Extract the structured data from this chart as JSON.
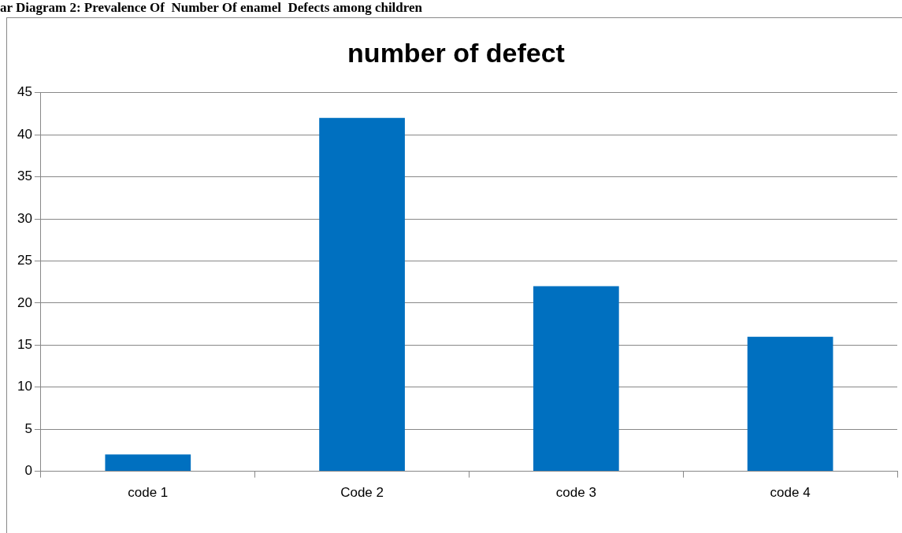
{
  "chart_data": {
    "type": "bar",
    "title": "number of defect",
    "annotations": [
      "ar Diagram 2: Prevalence Of  Number Of enamel  Defects among children"
    ],
    "categories": [
      "code 1",
      "Code 2",
      "code 3",
      "code 4"
    ],
    "values": [
      2,
      42,
      22,
      16
    ],
    "color": "#0070c0",
    "ylim": [
      0,
      45
    ],
    "yticks": [
      0,
      5,
      10,
      15,
      20,
      25,
      30,
      35,
      40,
      45
    ],
    "grid": "y",
    "legend": false
  }
}
